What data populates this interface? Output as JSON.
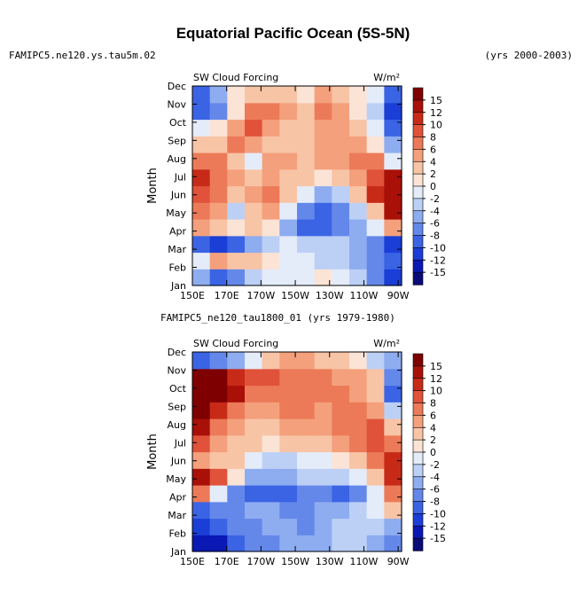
{
  "page": {
    "title": "Equatorial Pacific Ocean (5S-5N)",
    "case_top": "FAMIPC5.ne120.ys.tau5m.02",
    "years_top": "(yrs 2000-2003)",
    "case_bottom": "FAMIPC5_ne120_tau1800_01 (yrs 1979-1980)"
  },
  "chart_data": [
    {
      "type": "heatmap",
      "title": "SW Cloud Forcing",
      "units": "W/m²",
      "ylabel": "Month",
      "x_ticks": [
        "150E",
        "170E",
        "170W",
        "150W",
        "130W",
        "110W",
        "90W"
      ],
      "x_tick_degE": [
        150,
        170,
        190,
        210,
        230,
        250,
        270
      ],
      "xlim_degE": [
        150,
        272
      ],
      "y_ticks": [
        "Jan",
        "Feb",
        "Mar",
        "Apr",
        "May",
        "Jun",
        "Jul",
        "Aug",
        "Sep",
        "Oct",
        "Nov",
        "Dec"
      ],
      "x_cells_degE": [
        155,
        165,
        175,
        185,
        195,
        205,
        215,
        225,
        235,
        245,
        255,
        265
      ],
      "values": [
        [
          -6,
          -10,
          -8,
          -4,
          -2,
          -2,
          -1,
          0,
          -2,
          -4,
          -8,
          -12
        ],
        [
          -2,
          4,
          2,
          2,
          0,
          -2,
          -2,
          -4,
          -4,
          -6,
          -8,
          -10
        ],
        [
          -10,
          -12,
          -10,
          -6,
          -4,
          -2,
          -4,
          -4,
          -4,
          -6,
          -8,
          -12
        ],
        [
          4,
          2,
          0,
          2,
          0,
          -6,
          -10,
          -10,
          -8,
          -6,
          -2,
          4
        ],
        [
          6,
          4,
          -4,
          2,
          4,
          -2,
          -8,
          -10,
          -8,
          -4,
          2,
          12
        ],
        [
          8,
          6,
          2,
          4,
          6,
          2,
          -2,
          -6,
          -4,
          2,
          10,
          14
        ],
        [
          10,
          6,
          4,
          2,
          4,
          2,
          2,
          0,
          2,
          4,
          8,
          12
        ],
        [
          6,
          6,
          2,
          -2,
          4,
          4,
          2,
          4,
          4,
          6,
          6,
          -2
        ],
        [
          2,
          2,
          6,
          4,
          2,
          2,
          2,
          4,
          4,
          4,
          0,
          -6
        ],
        [
          -2,
          0,
          4,
          8,
          4,
          2,
          2,
          4,
          4,
          2,
          -2,
          -10
        ],
        [
          -10,
          -8,
          0,
          6,
          6,
          4,
          2,
          6,
          4,
          0,
          -4,
          -12
        ],
        [
          -10,
          -6,
          0,
          2,
          2,
          2,
          0,
          4,
          2,
          0,
          -2,
          -10
        ]
      ],
      "colorbar": {
        "levels": [
          "15",
          "12",
          "10",
          "8",
          "6",
          "4",
          "2",
          "0",
          "-2",
          "-4",
          "-6",
          "-8",
          "-10",
          "-12",
          "-15"
        ],
        "colors": [
          "#0a0a78",
          "#0a18b4",
          "#1a3ed6",
          "#3a64e4",
          "#6488ea",
          "#8eacf0",
          "#bcd0f6",
          "#e4ecfa",
          "#fbe4d6",
          "#f8c4a6",
          "#f4a07c",
          "#ec7a58",
          "#e0523a",
          "#c82a18",
          "#a81008",
          "#7e0000"
        ],
        "bounds": [
          -15,
          -12,
          -10,
          -8,
          -6,
          -4,
          -2,
          0,
          2,
          4,
          6,
          8,
          10,
          12,
          15
        ]
      }
    },
    {
      "type": "heatmap",
      "title": "SW Cloud Forcing",
      "units": "W/m²",
      "ylabel": "Month",
      "x_ticks": [
        "150E",
        "170E",
        "170W",
        "150W",
        "130W",
        "110W",
        "90W"
      ],
      "x_tick_degE": [
        150,
        170,
        190,
        210,
        230,
        250,
        270
      ],
      "xlim_degE": [
        150,
        272
      ],
      "y_ticks": [
        "Jan",
        "Feb",
        "Mar",
        "Apr",
        "May",
        "Jun",
        "Jul",
        "Aug",
        "Sep",
        "Oct",
        "Nov",
        "Dec"
      ],
      "x_cells_degE": [
        155,
        165,
        175,
        185,
        195,
        205,
        215,
        225,
        235,
        245,
        255,
        265
      ],
      "values": [
        [
          -15,
          -14,
          -10,
          -8,
          -8,
          -6,
          -6,
          -6,
          -4,
          -4,
          -6,
          -8
        ],
        [
          -12,
          -10,
          -8,
          -8,
          -6,
          -6,
          -8,
          -6,
          -4,
          -4,
          -4,
          -6
        ],
        [
          -10,
          -8,
          -8,
          -6,
          -6,
          -8,
          -8,
          -6,
          -6,
          -4,
          -2,
          2
        ],
        [
          6,
          -2,
          -8,
          -10,
          -10,
          -10,
          -8,
          -8,
          -10,
          -8,
          -2,
          6
        ],
        [
          12,
          8,
          0,
          -6,
          -6,
          -6,
          -4,
          -4,
          -4,
          -2,
          2,
          10
        ],
        [
          4,
          2,
          2,
          -2,
          -4,
          -4,
          -2,
          -2,
          0,
          2,
          6,
          10
        ],
        [
          8,
          4,
          2,
          2,
          0,
          2,
          2,
          2,
          4,
          6,
          8,
          6
        ],
        [
          12,
          6,
          4,
          2,
          2,
          4,
          4,
          4,
          6,
          6,
          8,
          2
        ],
        [
          15,
          10,
          6,
          4,
          4,
          6,
          6,
          4,
          6,
          6,
          4,
          -4
        ],
        [
          15,
          15,
          12,
          6,
          6,
          6,
          6,
          6,
          6,
          4,
          2,
          -10
        ],
        [
          15,
          15,
          10,
          8,
          8,
          6,
          6,
          6,
          4,
          4,
          2,
          -8
        ],
        [
          -10,
          -8,
          -6,
          -2,
          2,
          4,
          4,
          2,
          2,
          0,
          -4,
          -6
        ]
      ],
      "colorbar": {
        "levels": [
          "15",
          "12",
          "10",
          "8",
          "6",
          "4",
          "2",
          "0",
          "-2",
          "-4",
          "-6",
          "-8",
          "-10",
          "-12",
          "-15"
        ],
        "colors": [
          "#0a0a78",
          "#0a18b4",
          "#1a3ed6",
          "#3a64e4",
          "#6488ea",
          "#8eacf0",
          "#bcd0f6",
          "#e4ecfa",
          "#fbe4d6",
          "#f8c4a6",
          "#f4a07c",
          "#ec7a58",
          "#e0523a",
          "#c82a18",
          "#a81008",
          "#7e0000"
        ],
        "bounds": [
          -15,
          -12,
          -10,
          -8,
          -6,
          -4,
          -2,
          0,
          2,
          4,
          6,
          8,
          10,
          12,
          15
        ]
      }
    }
  ]
}
